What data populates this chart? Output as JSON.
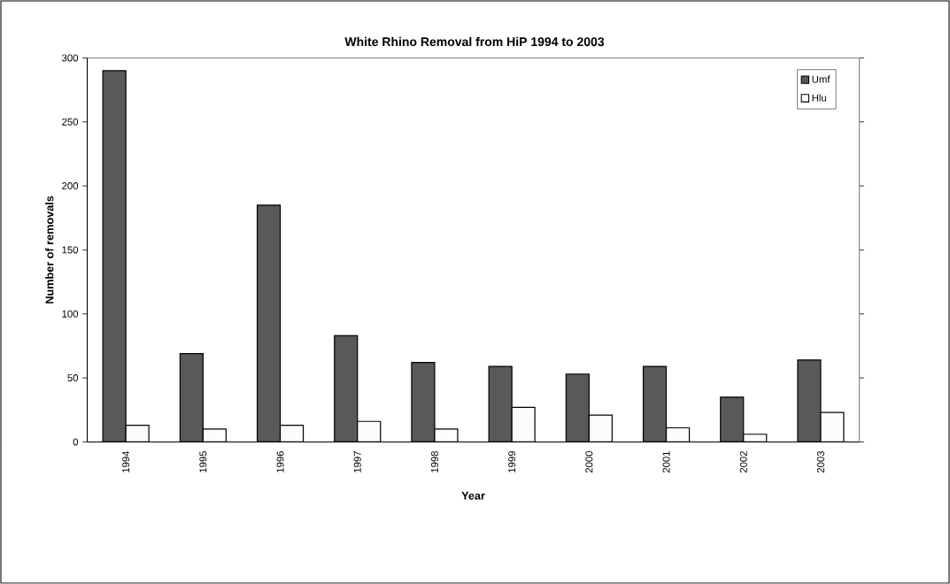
{
  "chart_data": {
    "type": "bar",
    "title": "White Rhino Removal from HiP 1994 to 2003",
    "xlabel": "Year",
    "ylabel": "Number of removals",
    "categories": [
      "1994",
      "1995",
      "1996",
      "1997",
      "1998",
      "1999",
      "2000",
      "2001",
      "2002",
      "2003"
    ],
    "series": [
      {
        "name": "Umf",
        "color": "#595959",
        "values": [
          290,
          69,
          185,
          83,
          62,
          59,
          53,
          59,
          35,
          64
        ]
      },
      {
        "name": "Hlu",
        "color": "#fcfcfc",
        "values": [
          13,
          10,
          13,
          16,
          10,
          27,
          21,
          11,
          6,
          23
        ]
      }
    ],
    "ylim": [
      0,
      300
    ],
    "yticks": [
      0,
      50,
      100,
      150,
      200,
      250,
      300
    ],
    "grid": false,
    "legend": "top right"
  }
}
